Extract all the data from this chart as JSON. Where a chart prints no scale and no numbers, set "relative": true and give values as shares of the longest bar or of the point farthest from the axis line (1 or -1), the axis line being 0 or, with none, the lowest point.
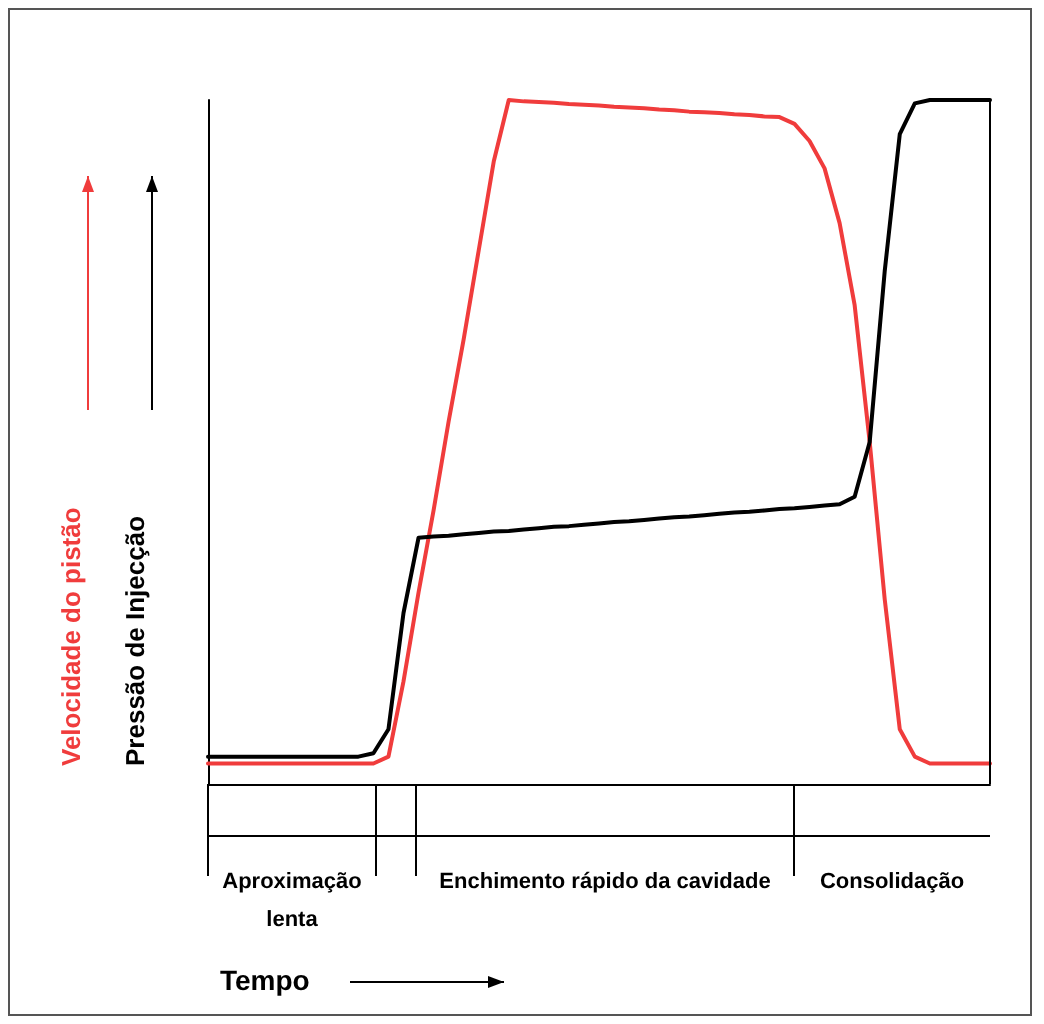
{
  "chart_data": {
    "type": "line",
    "relative": true,
    "grid": false,
    "marker": "none",
    "line_style": "solid",
    "ylabel": "Velocidade do pistão",
    "y2label": "Pressão de Injecção",
    "categories": [
      null,
      null,
      null,
      null,
      null,
      null,
      null,
      null,
      null,
      null,
      null,
      null,
      null,
      null,
      null,
      null,
      null,
      null,
      null,
      null,
      null,
      null,
      null,
      null,
      null,
      null,
      null,
      null,
      null,
      null,
      null,
      null,
      null,
      null,
      null,
      null,
      null,
      null,
      null,
      null,
      null,
      null,
      null,
      null,
      null,
      null,
      null,
      null,
      null,
      null,
      null,
      null,
      null
    ],
    "series": [
      {
        "color": "#f03c3c",
        "values": [
          0.03,
          0.03,
          0.03,
          0.03,
          0.03,
          0.03,
          0.03,
          0.03,
          0.03,
          0.03,
          0.03,
          0.03,
          0.04,
          0.15,
          0.28,
          0.4,
          0.53,
          0.65,
          0.78,
          0.91,
          1.0,
          0.998,
          0.997,
          0.996,
          0.994,
          0.993,
          0.992,
          0.99,
          0.989,
          0.988,
          0.986,
          0.985,
          0.983,
          0.982,
          0.981,
          0.979,
          0.978,
          0.976,
          0.975,
          0.965,
          0.94,
          0.9,
          0.82,
          0.7,
          0.5,
          0.27,
          0.08,
          0.04,
          0.03,
          0.03,
          0.03,
          0.03,
          0.03
        ]
      },
      {
        "color": "#000000",
        "values": [
          0.04,
          0.04,
          0.04,
          0.04,
          0.04,
          0.04,
          0.04,
          0.04,
          0.04,
          0.04,
          0.04,
          0.045,
          0.08,
          0.25,
          0.36,
          0.362,
          0.363,
          0.365,
          0.367,
          0.369,
          0.37,
          0.372,
          0.374,
          0.376,
          0.377,
          0.379,
          0.381,
          0.383,
          0.384,
          0.386,
          0.388,
          0.39,
          0.391,
          0.393,
          0.395,
          0.397,
          0.398,
          0.4,
          0.402,
          0.403,
          0.405,
          0.407,
          0.409,
          0.42,
          0.5,
          0.75,
          0.95,
          0.995,
          1.0,
          1.0,
          1.0,
          1.0,
          1.0
        ]
      }
    ],
    "annotations": [
      "Aproximação lenta",
      "Enchimento rápido da cavidade",
      "Consolidação",
      "Tempo"
    ]
  }
}
